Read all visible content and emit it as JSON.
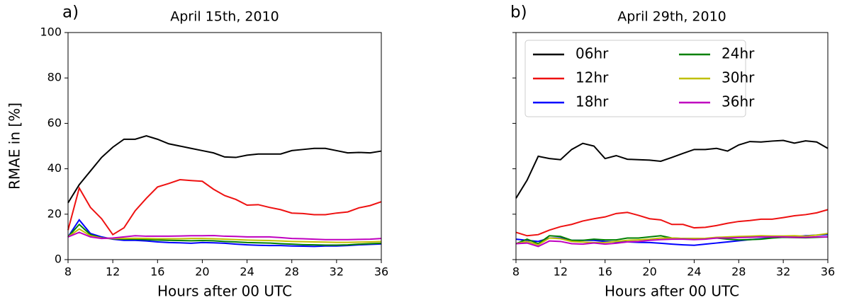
{
  "chart_data": [
    {
      "type": "line",
      "panel_label": "a)",
      "title": "April 15th, 2010",
      "ylabel": "RMAE in [%]",
      "xlabel": "Hours after 00 UTC",
      "x": [
        8,
        9,
        10,
        11,
        12,
        13,
        14,
        15,
        16,
        17,
        18,
        19,
        20,
        21,
        22,
        23,
        24,
        25,
        26,
        27,
        28,
        29,
        30,
        31,
        32,
        33,
        34,
        35,
        36
      ],
      "xlim": [
        8,
        36
      ],
      "xticks": [
        8,
        12,
        16,
        20,
        24,
        28,
        32,
        36
      ],
      "ylim": [
        0,
        100
      ],
      "yticks": [
        0,
        20,
        40,
        60,
        80,
        100
      ],
      "ytick_labels": true,
      "series": [
        {
          "name": "06hr",
          "color": "#000000",
          "values": [
            25,
            33,
            39,
            45,
            49.5,
            53,
            53,
            54.5,
            53,
            51,
            50,
            49,
            48,
            47,
            45.2,
            45,
            46,
            46.5,
            46.5,
            46.5,
            48,
            48.5,
            49,
            49,
            48,
            47,
            47.2,
            47,
            47.8
          ]
        },
        {
          "name": "12hr",
          "color": "#ee1111",
          "values": [
            13,
            31.5,
            23,
            18,
            11,
            14,
            21.5,
            27,
            32,
            33.5,
            35.2,
            34.8,
            34.5,
            31,
            28.2,
            26.5,
            24,
            24.2,
            23,
            22,
            20.5,
            20.3,
            19.8,
            19.8,
            20.5,
            21,
            22.8,
            23.8,
            25.5
          ]
        },
        {
          "name": "18hr",
          "color": "#0000ff",
          "values": [
            10,
            17.5,
            11.5,
            10,
            9,
            8.5,
            8.5,
            8.2,
            7.8,
            7.5,
            7.4,
            7.2,
            7.5,
            7.4,
            7.2,
            6.8,
            6.5,
            6.3,
            6.2,
            6.2,
            6,
            5.9,
            5.8,
            6,
            6,
            6.2,
            6.5,
            6.7,
            6.9
          ]
        },
        {
          "name": "24hr",
          "color": "#008000",
          "values": [
            10,
            15.5,
            11,
            9.5,
            9.2,
            9,
            9,
            8.8,
            8.6,
            8.5,
            8.4,
            8.3,
            8.4,
            8.3,
            8,
            7.8,
            7.5,
            7.4,
            7.3,
            7,
            6.8,
            6.6,
            6.5,
            6.4,
            6.4,
            6.5,
            6.8,
            7,
            7.2
          ]
        },
        {
          "name": "30hr",
          "color": "#bfbf00",
          "values": [
            10,
            13.5,
            10.5,
            9.5,
            9.3,
            9.3,
            9.4,
            9.3,
            9.2,
            9.2,
            9.2,
            9.3,
            9.3,
            9.2,
            9,
            8.8,
            8.6,
            8.5,
            8.4,
            8.2,
            8,
            7.9,
            7.8,
            7.7,
            7.6,
            7.6,
            7.7,
            7.8,
            8
          ]
        },
        {
          "name": "36hr",
          "color": "#bf00bf",
          "values": [
            10,
            12,
            10,
            9.3,
            9.5,
            10,
            10.5,
            10.3,
            10.3,
            10.3,
            10.4,
            10.5,
            10.5,
            10.6,
            10.3,
            10.2,
            10,
            10,
            10,
            9.7,
            9.3,
            9.2,
            9,
            8.8,
            8.8,
            8.8,
            8.9,
            9,
            9.3
          ]
        }
      ]
    },
    {
      "type": "line",
      "panel_label": "b)",
      "title": "April 29th, 2010",
      "xlabel": "Hours after 00 UTC",
      "x": [
        8,
        9,
        10,
        11,
        12,
        13,
        14,
        15,
        16,
        17,
        18,
        19,
        20,
        21,
        22,
        23,
        24,
        25,
        26,
        27,
        28,
        29,
        30,
        31,
        32,
        33,
        34,
        35,
        36
      ],
      "xlim": [
        8,
        36
      ],
      "xticks": [
        8,
        12,
        16,
        20,
        24,
        28,
        32,
        36
      ],
      "ylim": [
        0,
        100
      ],
      "yticks": [
        0,
        20,
        40,
        60,
        80,
        100
      ],
      "ytick_labels": false,
      "legend": "upper left",
      "series": [
        {
          "name": "06hr",
          "color": "#000000",
          "values": [
            27,
            35,
            45.5,
            44.5,
            44,
            48.5,
            51.2,
            50,
            44.5,
            45.8,
            44.2,
            44,
            43.8,
            43.3,
            45,
            46.8,
            48.5,
            48.5,
            49,
            47.8,
            50.5,
            52,
            51.8,
            52.2,
            52.5,
            51.3,
            52.3,
            51.8,
            49
          ]
        },
        {
          "name": "12hr",
          "color": "#ee1111",
          "values": [
            12,
            10.5,
            11,
            13,
            14.5,
            15.5,
            17,
            18,
            18.8,
            20.3,
            20.8,
            19.5,
            18,
            17.5,
            15.5,
            15.5,
            14,
            14.2,
            15,
            16,
            16.8,
            17.2,
            17.8,
            17.8,
            18.5,
            19.3,
            19.8,
            20.6,
            22
          ]
        },
        {
          "name": "18hr",
          "color": "#0000ff",
          "values": [
            9,
            8.5,
            8,
            9.5,
            9.5,
            8.5,
            8.5,
            8.5,
            8,
            7.8,
            7.8,
            7.6,
            7.5,
            7.2,
            6.8,
            6.5,
            6.3,
            6.8,
            7.3,
            7.8,
            8.3,
            8.8,
            9.2,
            9.6,
            10,
            10.1,
            10.5,
            10.8,
            11
          ]
        },
        {
          "name": "24hr",
          "color": "#008000",
          "values": [
            7,
            9,
            7,
            10.5,
            10.2,
            8.5,
            8.5,
            9,
            8.7,
            8.7,
            9.5,
            9.5,
            10,
            10.5,
            9.5,
            9.3,
            9.3,
            9.3,
            9.5,
            9,
            8.7,
            8.8,
            9,
            9.5,
            9.8,
            9.7,
            9.6,
            9.8,
            10
          ]
        },
        {
          "name": "30hr",
          "color": "#bfbf00",
          "values": [
            7,
            8,
            6.5,
            9.5,
            9.2,
            8,
            7.7,
            7.5,
            7.5,
            8,
            8.5,
            8.7,
            9,
            9.5,
            9.5,
            9.3,
            9.3,
            9.4,
            9.8,
            10,
            10.2,
            10.3,
            10.5,
            10.4,
            10.4,
            10.5,
            10.3,
            10.8,
            11.5
          ]
        },
        {
          "name": "36hr",
          "color": "#bf00bf",
          "values": [
            7,
            7.3,
            5.8,
            8.2,
            8,
            7,
            6.8,
            7.3,
            6.8,
            7.2,
            7.8,
            8,
            8.5,
            8.8,
            9,
            9,
            8.8,
            9,
            9.5,
            9.5,
            9.7,
            9.8,
            10,
            10,
            10,
            9.8,
            9.8,
            10,
            10
          ]
        }
      ]
    }
  ]
}
